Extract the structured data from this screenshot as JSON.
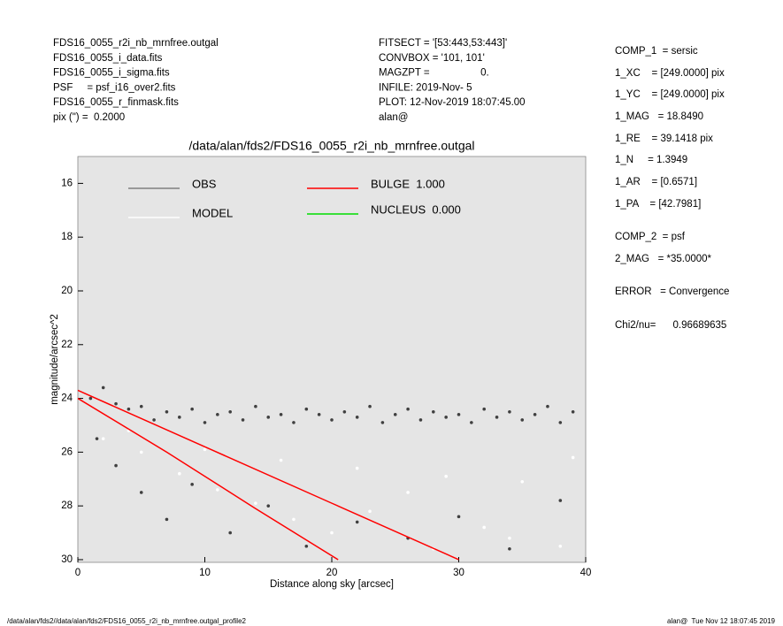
{
  "header": {
    "left": [
      "FDS16_0055_r2i_nb_mrnfree.outgal",
      "FDS16_0055_i_data.fits",
      "FDS16_0055_i_sigma.fits",
      "PSF     = psf_i16_over2.fits",
      "FDS16_0055_r_finmask.fits",
      "pix (\") =  0.2000"
    ],
    "middle": [
      "FITSECT = '[53:443,53:443]'",
      "CONVBOX = '101, 101'",
      "MAGZPT =                  0.",
      "INFILE: 2019-Nov- 5",
      "PLOT: 12-Nov-2019 18:07:45.00",
      "alan@"
    ],
    "right": [
      "COMP_1  = sersic",
      "1_XC    = [249.0000] pix",
      "1_YC    = [249.0000] pix",
      "1_MAG   = 18.8490",
      "1_RE    = 39.1418 pix",
      "1_N     = 1.3949",
      "1_AR    = [0.6571]",
      "1_PA    = [42.7981]",
      "COMP_2  = psf",
      "2_MAG   = *35.0000*",
      "ERROR   = Convergence",
      "Chi2/nu=      0.96689635"
    ]
  },
  "footer": {
    "left": "/data/alan/fds2//data/alan/fds2/FDS16_0055_r2i_nb_mrnfree.outgal_profile2",
    "right": "alan@  Tue Nov 12 18:07:45 2019"
  },
  "chart_data": {
    "type": "scatter",
    "title": "/data/alan/fds2/FDS16_0055_r2i_nb_mrnfree.outgal",
    "x_label": "Distance along sky [arcsec]",
    "y_label": "magnitude/arcsec^2",
    "xlim": [
      0,
      40
    ],
    "ylim": [
      30.1,
      15.0
    ],
    "xticks": [
      0,
      10,
      20,
      30,
      40
    ],
    "yticks": [
      16,
      18,
      20,
      22,
      24,
      26,
      28,
      30
    ],
    "series": [
      {
        "name": "OBS",
        "color": "#808080",
        "marker_color": "#404040",
        "kind": "points",
        "x": [
          1,
          2,
          3,
          4,
          5,
          6,
          7,
          8,
          9,
          10,
          11,
          12,
          13,
          14,
          15,
          16,
          17,
          18,
          19,
          20,
          21,
          22,
          23,
          24,
          25,
          26,
          27,
          28,
          29,
          30,
          31,
          32,
          33,
          34,
          35,
          36,
          37,
          38,
          39,
          1.5,
          3,
          5,
          7,
          9,
          12,
          15,
          18,
          22,
          26,
          30,
          34,
          38
        ],
        "values": [
          24.0,
          23.6,
          24.2,
          24.4,
          24.3,
          24.8,
          24.5,
          24.7,
          24.4,
          24.9,
          24.6,
          24.5,
          24.8,
          24.3,
          24.7,
          24.6,
          24.9,
          24.4,
          24.6,
          24.8,
          24.5,
          24.7,
          24.3,
          24.9,
          24.6,
          24.4,
          24.8,
          24.5,
          24.7,
          24.6,
          24.9,
          24.4,
          24.7,
          24.5,
          24.8,
          24.6,
          24.3,
          24.9,
          24.5,
          25.5,
          26.5,
          27.5,
          28.5,
          27.2,
          29.0,
          28.0,
          29.5,
          28.6,
          29.2,
          28.4,
          29.6,
          27.8
        ]
      },
      {
        "name": "MODEL",
        "color": "#ffffff",
        "kind": "points",
        "x": [
          2,
          5,
          8,
          11,
          14,
          17,
          20,
          23,
          26,
          29,
          32,
          35,
          38,
          4,
          10,
          16,
          22,
          28,
          34,
          39
        ],
        "values": [
          25.5,
          26.0,
          26.8,
          27.4,
          27.9,
          28.5,
          29.0,
          28.2,
          27.5,
          26.9,
          28.8,
          27.1,
          29.5,
          25.2,
          25.9,
          26.3,
          26.6,
          29.6,
          29.2,
          26.2
        ]
      },
      {
        "name": "BULGE  1.000",
        "color": "#ff0000",
        "kind": "line",
        "x": [
          0,
          10,
          20,
          30
        ],
        "values": [
          23.7,
          25.8,
          27.9,
          30.0
        ]
      },
      {
        "name": "BULGE  1.000",
        "color": "#ff0000",
        "kind": "line",
        "x": [
          0,
          7,
          14,
          20.5
        ],
        "values": [
          24.0,
          26.0,
          28.1,
          30.0
        ]
      },
      {
        "name": "NUCLEUS  0.000",
        "color": "#00dd00",
        "kind": "line",
        "x": [],
        "values": []
      }
    ]
  }
}
